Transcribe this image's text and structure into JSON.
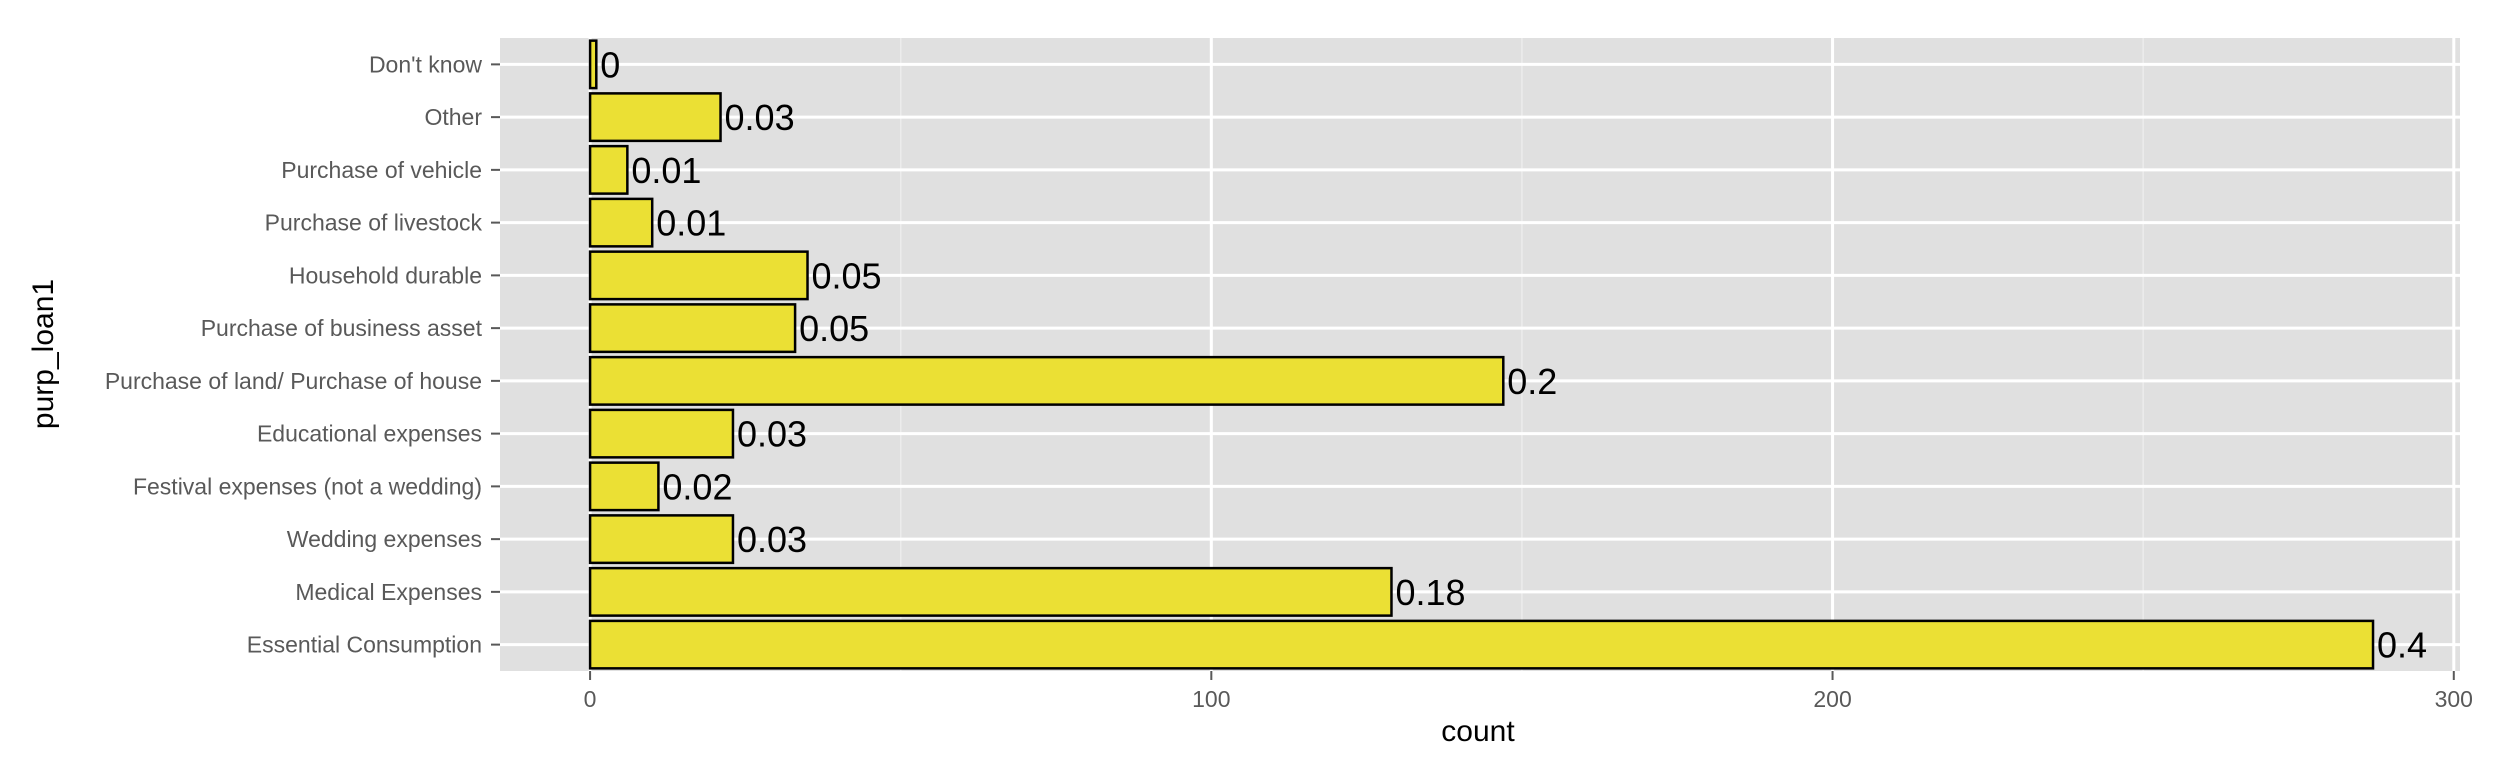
{
  "chart_data": {
    "type": "bar",
    "orientation": "horizontal",
    "categories": [
      "Essential Consumption",
      "Medical Expenses",
      "Wedding expenses",
      "Festival expenses (not a wedding)",
      "Educational expenses",
      "Purchase of land/ Purchase of house",
      "Purchase of business asset",
      "Household durable",
      "Purchase of livestock",
      "Purchase of vehicle",
      "Other",
      "Don't know"
    ],
    "values": [
      287,
      129,
      23,
      11,
      23,
      147,
      33,
      35,
      10,
      6,
      21,
      1
    ],
    "labels": [
      "0.4",
      "0.18",
      "0.03",
      "0.02",
      "0.03",
      "0.2",
      "0.05",
      "0.05",
      "0.01",
      "0.01",
      "0.03",
      "0"
    ],
    "xlabel": "count",
    "ylabel": "purp_loan1",
    "xlim": [
      -14.5,
      301
    ],
    "xticks": [
      0,
      100,
      200,
      300
    ],
    "grid": true,
    "legend": "none",
    "colors": {
      "bar_fill": "#ebe034",
      "bar_stroke": "#000000",
      "panel_bg": "#e0e0e0",
      "grid_major": "#ffffff",
      "grid_minor": "#ececec"
    }
  }
}
